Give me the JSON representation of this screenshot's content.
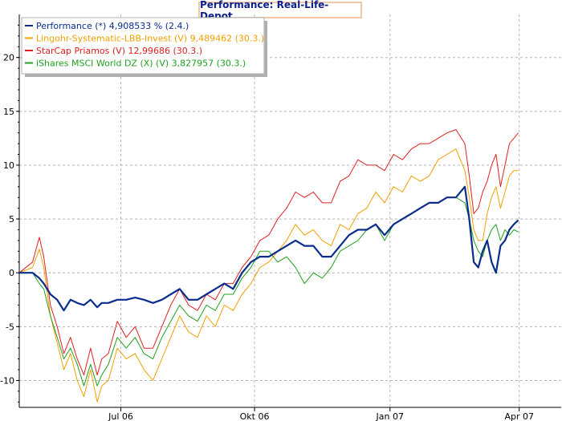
{
  "chart_data": {
    "type": "line",
    "title": "Performance: Real-Life-Depot",
    "xlabel": "",
    "ylabel": "",
    "ylim": [
      -12.5,
      24
    ],
    "xlim": [
      0,
      12
    ],
    "y_ticks": [
      20,
      15,
      10,
      5,
      0,
      -5,
      -10
    ],
    "x_ticks": [
      {
        "label": "Jul 06",
        "x": 2.28
      },
      {
        "label": "Okt 06",
        "x": 5.28
      },
      {
        "label": "Jan 07",
        "x": 8.32
      },
      {
        "label": "Apr 07",
        "x": 11.22
      }
    ],
    "grid": true,
    "legend_position": "top-left",
    "series": [
      {
        "name": "Lingohr-Systematic-LBB-Invest (V) 9,489462 (30.3.)",
        "color": "#f0a000",
        "x": [
          0,
          0.3,
          0.45,
          0.55,
          0.7,
          0.85,
          1.0,
          1.15,
          1.3,
          1.45,
          1.6,
          1.75,
          1.85,
          2.0,
          2.2,
          2.4,
          2.6,
          2.8,
          3.0,
          3.2,
          3.4,
          3.6,
          3.8,
          4.0,
          4.2,
          4.4,
          4.6,
          4.8,
          5.0,
          5.2,
          5.4,
          5.6,
          5.8,
          6.0,
          6.2,
          6.4,
          6.6,
          6.8,
          7.0,
          7.2,
          7.4,
          7.6,
          7.8,
          8.0,
          8.2,
          8.4,
          8.6,
          8.8,
          9.0,
          9.2,
          9.4,
          9.6,
          9.8,
          10.0,
          10.1,
          10.2,
          10.3,
          10.4,
          10.5,
          10.6,
          10.7,
          10.8,
          10.9,
          11.0,
          11.1,
          11.2
        ],
        "values": [
          0,
          0.5,
          2.2,
          0.5,
          -4.0,
          -6.5,
          -9.0,
          -7.5,
          -10.0,
          -11.5,
          -9.0,
          -12.0,
          -10.5,
          -10.0,
          -7.0,
          -8.0,
          -7.5,
          -9.0,
          -10.0,
          -8.0,
          -6.0,
          -4.0,
          -5.5,
          -6.0,
          -4.0,
          -5.0,
          -3.0,
          -3.5,
          -2.0,
          -1.0,
          0.5,
          1.0,
          2.0,
          3.0,
          4.5,
          3.5,
          4.0,
          3.0,
          2.5,
          4.5,
          4.0,
          5.5,
          6.0,
          7.5,
          6.5,
          8.0,
          7.5,
          9.0,
          8.5,
          9.0,
          10.5,
          11.0,
          11.5,
          9.5,
          7.0,
          4.0,
          3.0,
          3.0,
          5.5,
          7.0,
          8.0,
          6.0,
          7.5,
          9.0,
          9.5,
          9.5
        ]
      },
      {
        "name": "StarCap Priamos (V) 12,99686 (30.3.)",
        "color": "#e02020",
        "x": [
          0,
          0.3,
          0.45,
          0.55,
          0.7,
          0.85,
          1.0,
          1.15,
          1.3,
          1.45,
          1.6,
          1.75,
          1.85,
          2.0,
          2.2,
          2.4,
          2.6,
          2.8,
          3.0,
          3.2,
          3.4,
          3.6,
          3.8,
          4.0,
          4.2,
          4.4,
          4.6,
          4.8,
          5.0,
          5.2,
          5.4,
          5.6,
          5.8,
          6.0,
          6.2,
          6.4,
          6.6,
          6.8,
          7.0,
          7.2,
          7.4,
          7.6,
          7.8,
          8.0,
          8.2,
          8.4,
          8.6,
          8.8,
          9.0,
          9.2,
          9.4,
          9.6,
          9.8,
          10.0,
          10.1,
          10.2,
          10.3,
          10.4,
          10.5,
          10.6,
          10.7,
          10.8,
          10.9,
          11.0,
          11.1,
          11.2
        ],
        "values": [
          0,
          1.0,
          3.3,
          1.5,
          -3.0,
          -5.0,
          -7.5,
          -6.0,
          -8.0,
          -9.5,
          -7.0,
          -9.5,
          -8.0,
          -7.5,
          -4.5,
          -6.0,
          -5.0,
          -7.0,
          -7.0,
          -5.0,
          -3.0,
          -1.5,
          -3.0,
          -3.5,
          -2.0,
          -2.5,
          -1.0,
          -1.0,
          0.5,
          1.5,
          3.0,
          3.5,
          5.0,
          6.0,
          7.5,
          7.0,
          7.5,
          6.5,
          6.5,
          8.5,
          9.0,
          10.5,
          10.0,
          10.0,
          9.5,
          11.0,
          10.5,
          11.5,
          12.0,
          12.0,
          12.5,
          13.0,
          13.3,
          12.0,
          9.0,
          5.5,
          6.0,
          7.5,
          8.5,
          10.0,
          11.0,
          8.0,
          10.0,
          12.0,
          12.5,
          13.0
        ]
      },
      {
        "name": "iShares MSCI World DZ (X) (V) 3,827957 (30.3.)",
        "color": "#20a020",
        "x": [
          0,
          0.3,
          0.45,
          0.55,
          0.7,
          0.85,
          1.0,
          1.15,
          1.3,
          1.45,
          1.6,
          1.75,
          1.85,
          2.0,
          2.2,
          2.4,
          2.6,
          2.8,
          3.0,
          3.2,
          3.4,
          3.6,
          3.8,
          4.0,
          4.2,
          4.4,
          4.6,
          4.8,
          5.0,
          5.2,
          5.4,
          5.6,
          5.8,
          6.0,
          6.2,
          6.4,
          6.6,
          6.8,
          7.0,
          7.2,
          7.4,
          7.6,
          7.8,
          8.0,
          8.2,
          8.4,
          8.6,
          8.8,
          9.0,
          9.2,
          9.4,
          9.6,
          9.8,
          10.0,
          10.1,
          10.2,
          10.3,
          10.4,
          10.5,
          10.6,
          10.7,
          10.8,
          10.9,
          11.0,
          11.1,
          11.2
        ],
        "values": [
          0,
          0.0,
          -1.0,
          -1.5,
          -4.0,
          -6.0,
          -8.0,
          -7.0,
          -8.5,
          -10.5,
          -8.5,
          -10.5,
          -9.5,
          -8.5,
          -6.0,
          -7.0,
          -6.0,
          -7.5,
          -8.0,
          -6.0,
          -4.5,
          -3.0,
          -4.0,
          -4.5,
          -3.0,
          -3.5,
          -2.0,
          -2.0,
          -0.5,
          0.5,
          2.0,
          2.0,
          1.0,
          1.5,
          0.5,
          -1.0,
          0.0,
          -0.5,
          0.5,
          2.0,
          2.5,
          3.0,
          4.0,
          4.5,
          3.0,
          4.5,
          5.0,
          5.5,
          6.0,
          6.5,
          6.5,
          7.0,
          7.0,
          6.5,
          5.0,
          3.0,
          2.0,
          1.5,
          3.0,
          4.0,
          4.5,
          3.0,
          4.0,
          3.5,
          4.0,
          3.8
        ]
      },
      {
        "name": "Performance (*) 4,908533 % (2.4.)",
        "color": "#0a2d8c",
        "x": [
          0,
          0.3,
          0.45,
          0.55,
          0.7,
          0.85,
          1.0,
          1.15,
          1.3,
          1.45,
          1.6,
          1.75,
          1.85,
          2.0,
          2.2,
          2.4,
          2.6,
          2.8,
          3.0,
          3.2,
          3.4,
          3.6,
          3.8,
          4.0,
          4.2,
          4.4,
          4.6,
          4.8,
          5.0,
          5.2,
          5.4,
          5.6,
          5.8,
          6.0,
          6.2,
          6.4,
          6.6,
          6.8,
          7.0,
          7.2,
          7.4,
          7.6,
          7.8,
          8.0,
          8.2,
          8.4,
          8.6,
          8.8,
          9.0,
          9.2,
          9.4,
          9.6,
          9.8,
          10.0,
          10.1,
          10.2,
          10.3,
          10.4,
          10.5,
          10.6,
          10.7,
          10.8,
          10.9,
          11.0,
          11.1,
          11.2
        ],
        "values": [
          0,
          0.0,
          -0.5,
          -1.0,
          -2.0,
          -2.5,
          -3.5,
          -2.5,
          -2.8,
          -3.0,
          -2.5,
          -3.2,
          -2.8,
          -2.8,
          -2.5,
          -2.5,
          -2.3,
          -2.5,
          -2.8,
          -2.5,
          -2.0,
          -1.5,
          -2.5,
          -2.5,
          -2.0,
          -1.5,
          -1.0,
          -1.5,
          0.0,
          1.0,
          1.5,
          1.5,
          2.0,
          2.5,
          3.0,
          2.5,
          2.5,
          1.5,
          1.5,
          2.5,
          3.5,
          4.0,
          4.0,
          4.5,
          3.5,
          4.5,
          5.0,
          5.5,
          6.0,
          6.5,
          6.5,
          7.0,
          7.0,
          8.0,
          5.0,
          1.0,
          0.5,
          2.0,
          3.0,
          1.0,
          0.0,
          2.5,
          3.0,
          4.0,
          4.5,
          4.9
        ]
      }
    ],
    "legend": [
      {
        "label": "Performance (*) 4,908533 % (2.4.)",
        "color": "#0a2d8c"
      },
      {
        "label": "Lingohr-Systematic-LBB-Invest (V) 9,489462 (30.3.)",
        "color": "#f0a000"
      },
      {
        "label": "StarCap Priamos (V) 12,99686 (30.3.)",
        "color": "#e02020"
      },
      {
        "label": "iShares MSCI World DZ (X) (V) 3,827957 (30.3.)",
        "color": "#20a020"
      }
    ]
  }
}
